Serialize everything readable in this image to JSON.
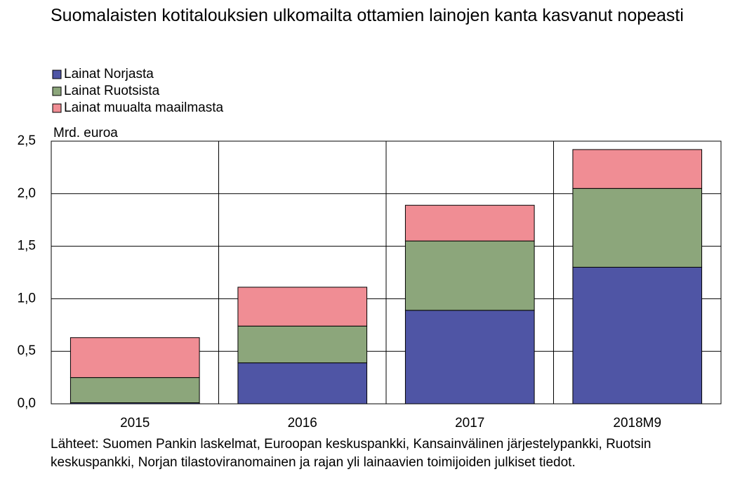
{
  "chart_data": {
    "type": "stacked-bar",
    "title": "Suomalaisten kotitalouksien ulkomailta ottamien lainojen kanta kasvanut nopeasti",
    "y_label": "Mrd. euroa",
    "note": "Lähteet: Suomen Pankin laskelmat, Euroopan keskuspankki, Kansainvälinen järjestelypankki, Ruotsin keskuspankki, Norjan tilastoviranomainen ja rajan yli lainaavien toimijoiden julkiset tiedot.",
    "categories": [
      "2015",
      "2016",
      "2017",
      "2018M9"
    ],
    "series": [
      {
        "name": "Lainat Norjasta",
        "color": "#4f55a5",
        "values": [
          0.01,
          0.39,
          0.89,
          1.3
        ]
      },
      {
        "name": "Lainat Ruotsista",
        "color": "#8ca67b",
        "values": [
          0.24,
          0.35,
          0.66,
          0.75
        ]
      },
      {
        "name": "Lainat muualta maailmasta",
        "color": "#f08d94",
        "values": [
          0.38,
          0.37,
          0.34,
          0.37
        ]
      }
    ],
    "ylim": [
      0,
      2.5
    ],
    "yticks": [
      {
        "value": 0,
        "label": "0,0"
      },
      {
        "value": 0.5,
        "label": "0,5"
      },
      {
        "value": 1,
        "label": "1,0"
      },
      {
        "value": 1.5,
        "label": "1,5"
      },
      {
        "value": 2,
        "label": "2,0"
      },
      {
        "value": 2.5,
        "label": "2,5"
      }
    ],
    "grid": true
  }
}
